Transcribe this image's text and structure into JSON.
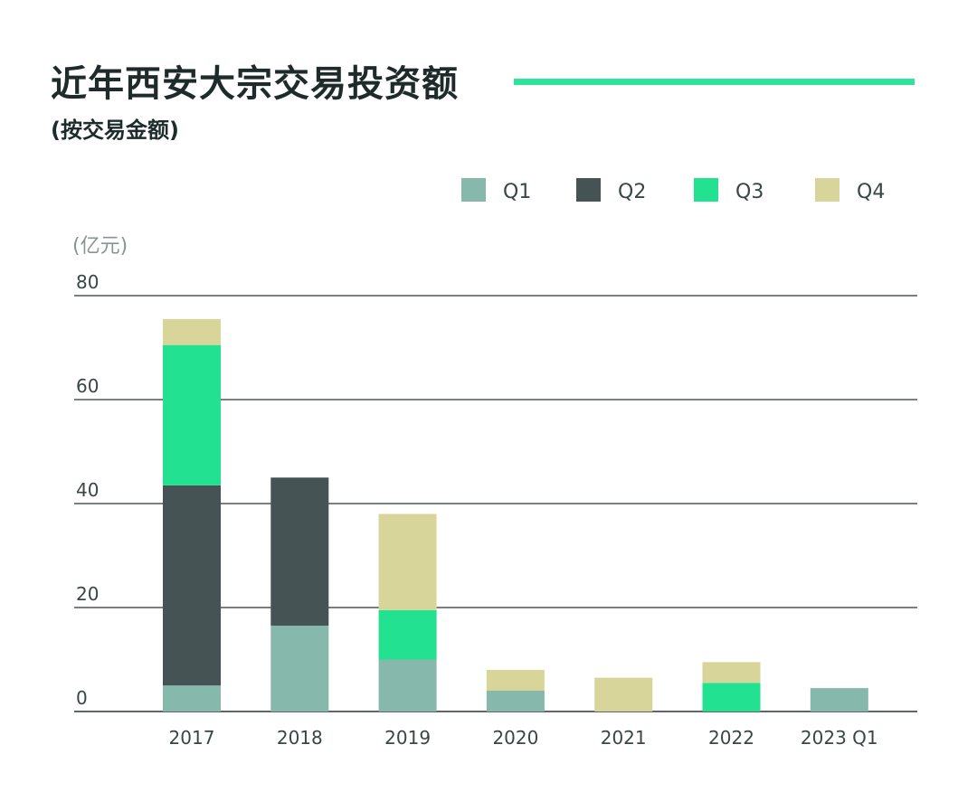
{
  "title": "近年西安大宗交易投资额",
  "subtitle": "(按交易金额)",
  "chart_data": {
    "type": "bar",
    "stacked": true,
    "title": "近年西安大宗交易投资额",
    "subtitle": "(按交易金额)",
    "ylabel": "(亿元)",
    "xlabel": "",
    "ylim": [
      0,
      80
    ],
    "yticks": [
      0,
      20,
      40,
      60,
      80
    ],
    "grid": true,
    "legend_position": "top-right",
    "categories": [
      "2017",
      "2018",
      "2019",
      "2020",
      "2021",
      "2022",
      "2023 Q1"
    ],
    "series": [
      {
        "name": "Q1",
        "color": "#86b8ab",
        "values": [
          5,
          16.5,
          10,
          4,
          0,
          0,
          4.5
        ]
      },
      {
        "name": "Q2",
        "color": "#455354",
        "values": [
          38.5,
          28.5,
          0,
          0,
          0,
          0,
          0
        ]
      },
      {
        "name": "Q3",
        "color": "#22e190",
        "values": [
          27,
          0,
          9.5,
          0,
          0,
          5.5,
          0
        ]
      },
      {
        "name": "Q4",
        "color": "#d8d59b",
        "values": [
          5,
          0,
          18.5,
          4,
          6.5,
          4,
          0
        ]
      }
    ]
  }
}
